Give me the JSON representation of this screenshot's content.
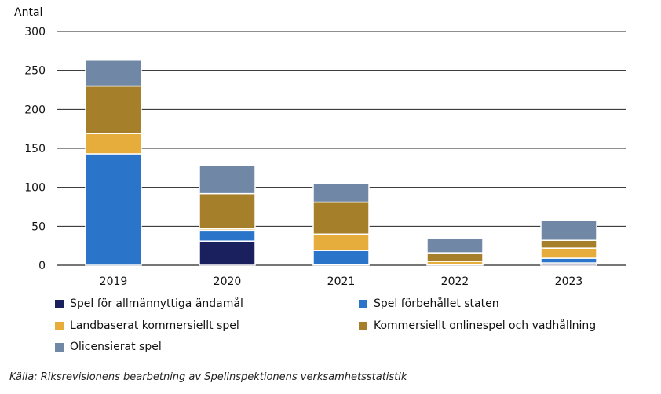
{
  "chart_data": {
    "type": "bar",
    "stacked": true,
    "ylabel": "Antal",
    "ylim": [
      0,
      300
    ],
    "yticks": [
      0,
      50,
      100,
      150,
      200,
      250,
      300
    ],
    "grid": true,
    "legend_placement": "bottom",
    "categories": [
      "2019",
      "2020",
      "2021",
      "2022",
      "2023"
    ],
    "series": [
      {
        "name": "Spel för allmännyttiga ändamål",
        "color": "#1a1f5e",
        "values": [
          0,
          31,
          1,
          0,
          3
        ]
      },
      {
        "name": "Spel förbehållet staten",
        "color": "#2a74c9",
        "values": [
          143,
          14,
          18,
          1,
          6
        ]
      },
      {
        "name": "Landbaserat kommersiellt spel",
        "color": "#e6ad3c",
        "values": [
          26,
          2,
          21,
          4,
          13
        ]
      },
      {
        "name": "Kommersiellt onlinespel och vadhållning",
        "color": "#a67f2a",
        "values": [
          61,
          45,
          41,
          11,
          10
        ]
      },
      {
        "name": "Olicensierat spel",
        "color": "#7088a6",
        "values": [
          33,
          36,
          24,
          19,
          26
        ]
      }
    ],
    "source": "Källa: Riksrevisionens bearbetning av Spelinspektionens verksamhetsstatistik"
  }
}
